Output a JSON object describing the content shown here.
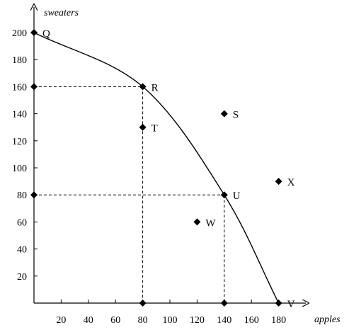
{
  "chart_data": {
    "type": "scatter",
    "xlabel": "apples",
    "ylabel": "sweaters",
    "xlim": [
      0,
      200
    ],
    "ylim": [
      0,
      210
    ],
    "x_ticks": [
      20,
      40,
      60,
      80,
      100,
      120,
      140,
      160,
      180
    ],
    "y_ticks": [
      20,
      40,
      60,
      80,
      100,
      120,
      140,
      160,
      180,
      200
    ],
    "grid": false,
    "curve": {
      "points": [
        [
          0,
          200
        ],
        [
          80,
          160
        ],
        [
          140,
          80
        ],
        [
          180,
          0
        ]
      ]
    },
    "points": [
      {
        "label": "Q",
        "x": 0,
        "y": 200
      },
      {
        "label": "R",
        "x": 80,
        "y": 160
      },
      {
        "label": "S",
        "x": 140,
        "y": 140
      },
      {
        "label": "T",
        "x": 80,
        "y": 130
      },
      {
        "label": "U",
        "x": 140,
        "y": 80
      },
      {
        "label": "V",
        "x": 180,
        "y": 0
      },
      {
        "label": "W",
        "x": 120,
        "y": 60
      },
      {
        "label": "X",
        "x": 180,
        "y": 90
      }
    ],
    "axis_markers": [
      {
        "axis": "y",
        "value": 160
      },
      {
        "axis": "y",
        "value": 80
      },
      {
        "axis": "x",
        "value": 80
      },
      {
        "axis": "x",
        "value": 140
      }
    ],
    "dashed_guides": [
      {
        "from": [
          0,
          160
        ],
        "to": [
          80,
          160
        ]
      },
      {
        "from": [
          80,
          160
        ],
        "to": [
          80,
          0
        ]
      },
      {
        "from": [
          0,
          80
        ],
        "to": [
          140,
          80
        ]
      },
      {
        "from": [
          140,
          80
        ],
        "to": [
          140,
          0
        ]
      }
    ]
  }
}
